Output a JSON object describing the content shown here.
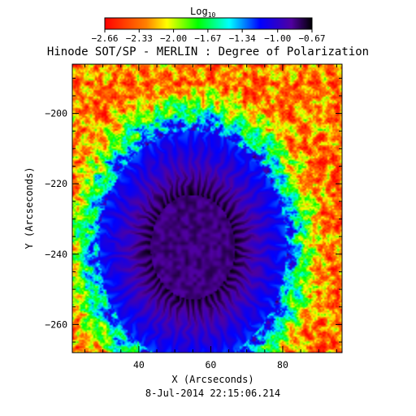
{
  "chart_data": {
    "type": "heatmap",
    "title": "Hinode SOT/SP - MERLIN : Degree of Polarization",
    "xlabel": "X (Arcseconds)",
    "ylabel": "Y (Arcseconds)",
    "timestamp": "8-Jul-2014 22:15:06.214",
    "xlim": [
      21.5,
      96.5
    ],
    "ylim": [
      -268,
      -186
    ],
    "xticks": [
      40,
      60,
      80
    ],
    "yticks": [
      -200,
      -220,
      -240,
      -260
    ],
    "xtick_labels": [
      "40",
      "60",
      "80"
    ],
    "ytick_labels": [
      "−200",
      "−220",
      "−240",
      "−260"
    ],
    "colorbar": {
      "title": "Log",
      "title_sub": "10",
      "range": [
        -2.66,
        -0.67
      ],
      "ticks": [
        -2.66,
        -2.33,
        -2.0,
        -1.67,
        -1.34,
        -1.0,
        -0.67
      ],
      "tick_labels": [
        "−2.66",
        "−2.33",
        "−2.00",
        "−1.67",
        "−1.34",
        "−1.00",
        "−0.67"
      ],
      "colormap": [
        "#ffffff",
        "#ff0000",
        "#ff8000",
        "#ffff00",
        "#00ff00",
        "#00ffff",
        "#0000ff",
        "#5000a0",
        "#000000"
      ]
    },
    "features": {
      "umbra_center": [
        55,
        -238
      ],
      "umbra_radius": 12,
      "penumbra_radius_x": 26,
      "penumbra_radius_y": 33,
      "quiet_sun_level": -2.3,
      "penumbra_level": -1.2,
      "umbra_level": -0.75
    }
  }
}
